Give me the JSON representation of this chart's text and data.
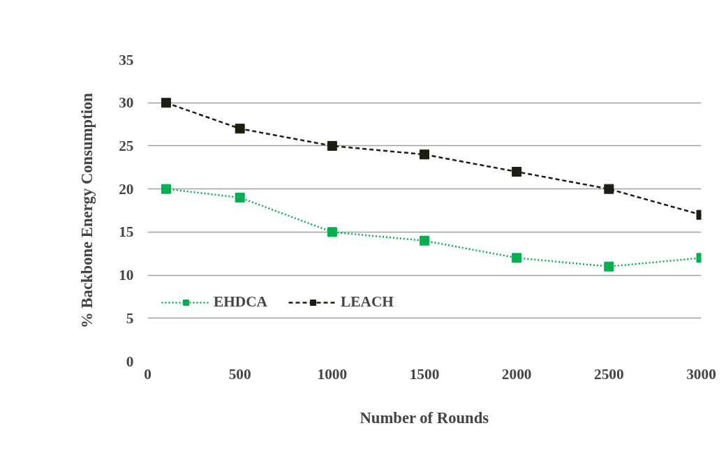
{
  "chart_data": {
    "type": "line",
    "xlabel": "Number of Rounds",
    "ylabel": "% Backbone Energy Consumption",
    "x": [
      100,
      500,
      1000,
      1500,
      2000,
      2500,
      3000
    ],
    "series": [
      {
        "name": "EHDCA",
        "color": "#00b050",
        "values": [
          20,
          19,
          15,
          14,
          12,
          11,
          12
        ],
        "line_style": "dotted",
        "marker": "square"
      },
      {
        "name": "LEACH",
        "color": "#1d1d12",
        "values": [
          30,
          27,
          25,
          24,
          22,
          20,
          17
        ],
        "line_style": "dashed",
        "marker": "square"
      }
    ],
    "xlim": [
      0,
      3000
    ],
    "xticks": [
      0,
      500,
      1000,
      1500,
      2000,
      2500,
      3000
    ],
    "ylim": [
      0,
      35
    ],
    "yticks": [
      0,
      5,
      10,
      15,
      20,
      25,
      30,
      35
    ],
    "grid": "y",
    "legend": "left"
  }
}
